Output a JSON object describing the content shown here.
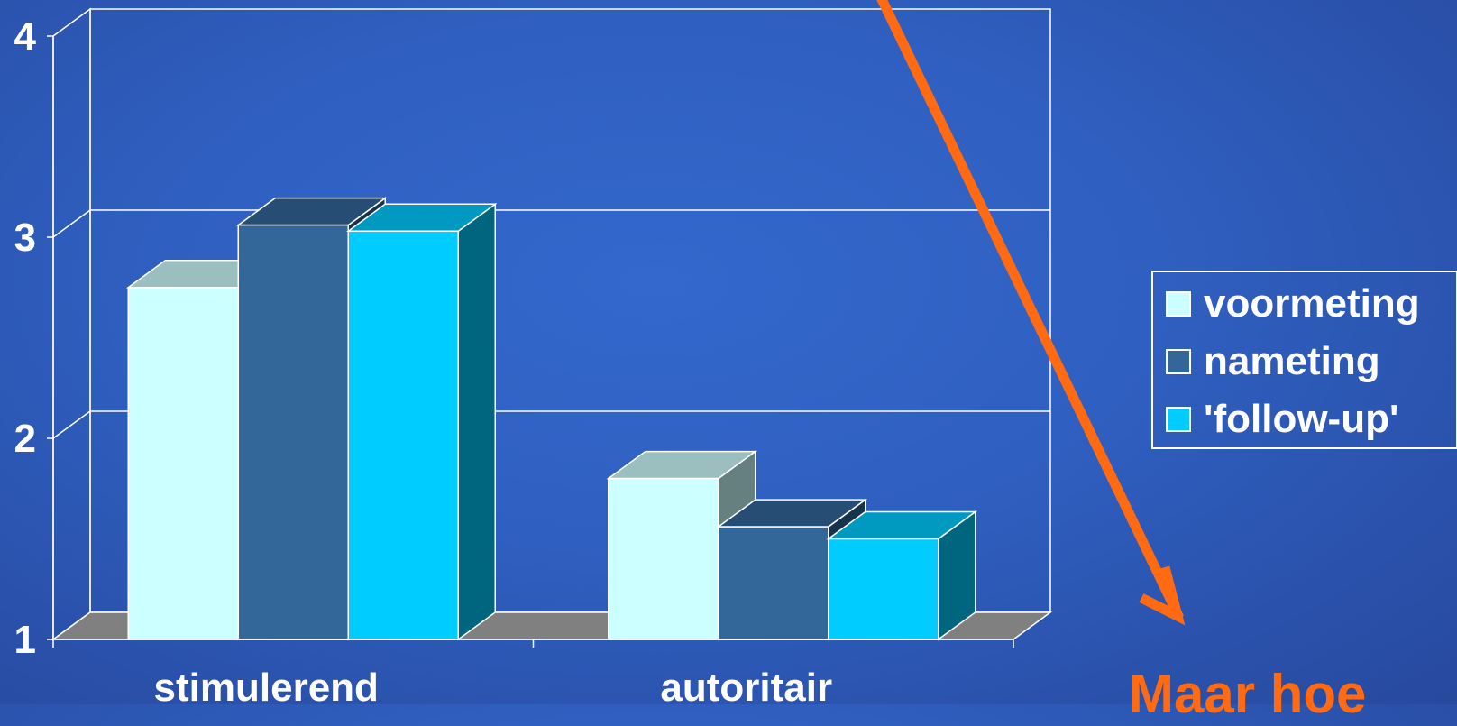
{
  "chart_data": {
    "type": "bar",
    "categories": [
      "stimulerend",
      "autoritair"
    ],
    "series": [
      {
        "name": "voormeting",
        "values": [
          2.75,
          1.8
        ]
      },
      {
        "name": "nameting",
        "values": [
          3.06,
          1.56
        ]
      },
      {
        "name": "'follow-up'",
        "values": [
          3.03,
          1.5
        ]
      }
    ],
    "ylim": [
      1,
      4
    ],
    "yticks": [
      "1",
      "2",
      "3",
      "4"
    ],
    "grid": true,
    "style": "3d-clustered-column",
    "legend_position": "right",
    "colors": {
      "voormeting": {
        "front": "#ccffff",
        "top": "#9bbfbf",
        "side": "#668080"
      },
      "nameting": {
        "front": "#336699",
        "top": "#264d73",
        "side": "#1a334d"
      },
      "'follow-up'": {
        "front": "#00ccff",
        "top": "#0099bf",
        "side": "#006680"
      },
      "floor": "#808080",
      "axis": "#ffffff"
    }
  },
  "legend": {
    "items": [
      {
        "label": "voormeting",
        "color": "#ccffff"
      },
      {
        "label": "nameting",
        "color": "#336699"
      },
      {
        "label": "'follow-up'",
        "color": "#00ccff"
      }
    ]
  },
  "annotation": {
    "text": "Maar hoe",
    "arrow_color": "#ff6a13"
  }
}
